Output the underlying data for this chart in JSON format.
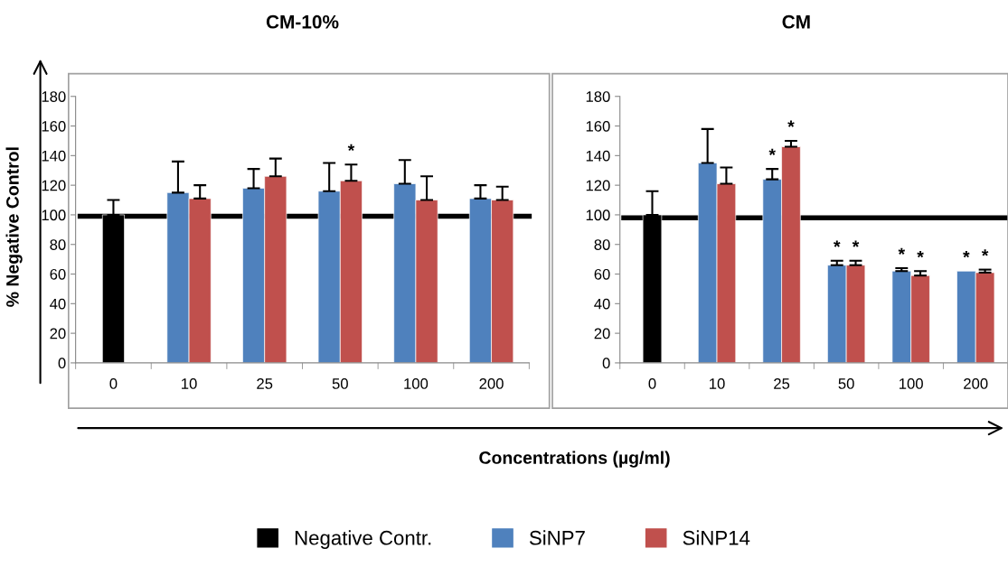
{
  "chart_data": [
    {
      "type": "bar",
      "title": "CM-10%",
      "ylabel": "% Negative Control",
      "categories": [
        "0",
        "10",
        "25",
        "50",
        "100",
        "200"
      ],
      "series": [
        {
          "name": "Negative Contr.",
          "color": "#000000",
          "values": [
            100,
            null,
            null,
            null,
            null,
            null
          ],
          "errors": [
            [
              100,
              110
            ],
            null,
            null,
            null,
            null,
            null
          ]
        },
        {
          "name": "SiNP7",
          "color": "#4f81bd",
          "values": [
            null,
            115,
            118,
            116,
            121,
            111
          ],
          "errors": [
            null,
            [
              115,
              136
            ],
            [
              118,
              131
            ],
            [
              116,
              135
            ],
            [
              121,
              137
            ],
            [
              111,
              120
            ]
          ]
        },
        {
          "name": "SiNP14",
          "color": "#c0504d",
          "values": [
            null,
            111,
            126,
            123,
            110,
            110
          ],
          "errors": [
            null,
            [
              111,
              120
            ],
            [
              126,
              138
            ],
            [
              123,
              134
            ],
            [
              110,
              126
            ],
            [
              110,
              119
            ]
          ]
        }
      ],
      "ylim": [
        0,
        180
      ],
      "yticks": [
        0,
        20,
        40,
        60,
        80,
        100,
        120,
        140,
        160,
        180
      ],
      "ref_lines": [
        {
          "axis": "y",
          "value": 99,
          "color": "#000000"
        }
      ],
      "annotations": [
        {
          "text": "*",
          "x": "50",
          "y": 123
        }
      ],
      "legend": "bottom"
    },
    {
      "type": "bar",
      "title": "CM",
      "xlabel": "Concentrations (µg/ml)",
      "categories": [
        "0",
        "10",
        "25",
        "50",
        "100",
        "200"
      ],
      "series": [
        {
          "name": "Negative Contr.",
          "color": "#000000",
          "values": [
            100,
            null,
            null,
            null,
            null,
            null
          ],
          "errors": [
            [
              100,
              116
            ],
            null,
            null,
            null,
            null,
            null
          ]
        },
        {
          "name": "SiNP7",
          "color": "#4f81bd",
          "values": [
            null,
            135,
            124,
            66,
            62,
            62
          ],
          "errors": [
            null,
            [
              135,
              158
            ],
            [
              124,
              131
            ],
            [
              66,
              69
            ],
            [
              62,
              64
            ],
            null
          ]
        },
        {
          "name": "SiNP14",
          "color": "#c0504d",
          "values": [
            null,
            121,
            146,
            66,
            59,
            61
          ],
          "errors": [
            null,
            [
              121,
              132
            ],
            [
              146,
              150
            ],
            [
              66,
              69
            ],
            [
              59,
              62
            ],
            [
              61,
              63
            ]
          ]
        }
      ],
      "ylim": [
        0,
        180
      ],
      "yticks": [
        0,
        20,
        40,
        60,
        80,
        100,
        120,
        140,
        160,
        180
      ],
      "ref_lines": [
        {
          "axis": "y",
          "value": 98,
          "color": "#000000"
        }
      ],
      "annotations": [
        {
          "text": "*",
          "x": "25",
          "y": 124
        },
        {
          "text": "*",
          "x": "25",
          "y": 146
        },
        {
          "text": "*",
          "x": "50",
          "y": 66
        },
        {
          "text": "*",
          "x": "50",
          "y": 66
        },
        {
          "text": "*",
          "x": "100",
          "y": 62
        },
        {
          "text": "*",
          "x": "100",
          "y": 59
        },
        {
          "text": "*",
          "x": "200",
          "y": 62
        },
        {
          "text": "*",
          "x": "200",
          "y": 61
        }
      ]
    }
  ]
}
